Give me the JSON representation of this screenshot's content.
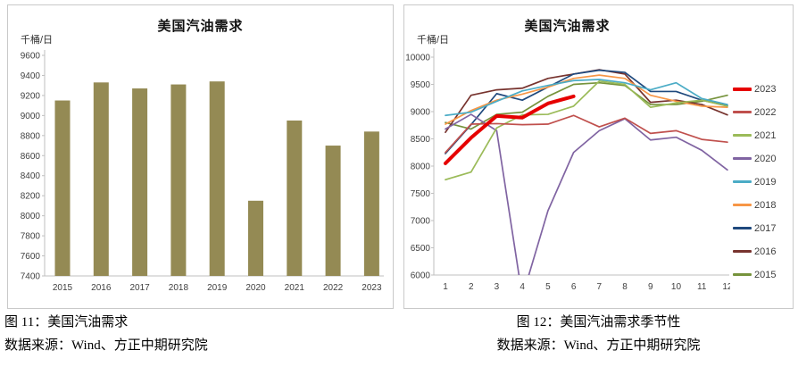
{
  "captions": {
    "left_title": "图 11：美国汽油需求",
    "left_source": "数据来源：Wind、方正中期研究院",
    "right_title": "图 12：美国汽油需求季节性",
    "right_source": "数据来源：Wind、方正中期研究院"
  },
  "chart_data": [
    {
      "type": "bar",
      "title": "美国汽油需求",
      "unit_label": "千桶/日",
      "categories": [
        "2015",
        "2016",
        "2017",
        "2018",
        "2019",
        "2020",
        "2021",
        "2022",
        "2023"
      ],
      "values": [
        9150,
        9330,
        9270,
        9310,
        9340,
        8150,
        8950,
        8700,
        8840
      ],
      "xlabel": "",
      "ylabel": "千桶/日",
      "ylim": [
        7400,
        9600
      ],
      "ytick_step": 200,
      "grid": "off",
      "bar_color": "#948A54",
      "axis_color": "#BFBFBF",
      "tick_label_color": "#3F3F3F"
    },
    {
      "type": "line",
      "title": "美国汽油需求",
      "unit_label": "千桶/日",
      "x": [
        1,
        2,
        3,
        4,
        5,
        6,
        7,
        8,
        9,
        10,
        11,
        12
      ],
      "xlabel": "",
      "ylabel": "千桶/日",
      "ylim": [
        6000,
        10000
      ],
      "ytick_step": 500,
      "grid": "off",
      "legend_position": "right",
      "axis_color": "#BFBFBF",
      "tick_label_color": "#3F3F3F",
      "series": [
        {
          "name": "2023",
          "color": "#E60000",
          "width": 4,
          "values": [
            8050,
            8520,
            8920,
            8890,
            9150,
            9280
          ]
        },
        {
          "name": "2022",
          "color": "#C0504D",
          "width": 1.7,
          "values": [
            8250,
            8770,
            8780,
            8760,
            8770,
            8930,
            8720,
            8880,
            8600,
            8650,
            8490,
            8440
          ]
        },
        {
          "name": "2021",
          "color": "#9BBB59",
          "width": 1.7,
          "values": [
            7750,
            7890,
            8700,
            8940,
            8950,
            9100,
            9560,
            9500,
            9080,
            9160,
            9210,
            9100
          ]
        },
        {
          "name": "2020",
          "color": "#8064A2",
          "width": 1.7,
          "values": [
            8680,
            8950,
            8650,
            5600,
            7180,
            8250,
            8650,
            8870,
            8480,
            8530,
            8290,
            7930
          ]
        },
        {
          "name": "2019",
          "color": "#4BACC6",
          "width": 1.7,
          "values": [
            8930,
            8990,
            9190,
            9380,
            9480,
            9570,
            9590,
            9530,
            9400,
            9530,
            9240,
            9130
          ]
        },
        {
          "name": "2018",
          "color": "#F79646",
          "width": 1.7,
          "values": [
            8770,
            9020,
            9210,
            9320,
            9450,
            9610,
            9670,
            9610,
            9300,
            9190,
            9100,
            9080
          ]
        },
        {
          "name": "2017",
          "color": "#1F497D",
          "width": 1.7,
          "values": [
            8230,
            8760,
            9330,
            9210,
            9450,
            9690,
            9760,
            9720,
            9370,
            9370,
            9210,
            9110
          ]
        },
        {
          "name": "2016",
          "color": "#77332E",
          "width": 1.7,
          "values": [
            8620,
            9300,
            9400,
            9430,
            9610,
            9690,
            9770,
            9690,
            9170,
            9210,
            9130,
            8940
          ]
        },
        {
          "name": "2015",
          "color": "#76933C",
          "width": 1.7,
          "values": [
            8800,
            8680,
            8950,
            8990,
            9280,
            9500,
            9530,
            9480,
            9130,
            9130,
            9190,
            9300
          ]
        }
      ]
    }
  ]
}
